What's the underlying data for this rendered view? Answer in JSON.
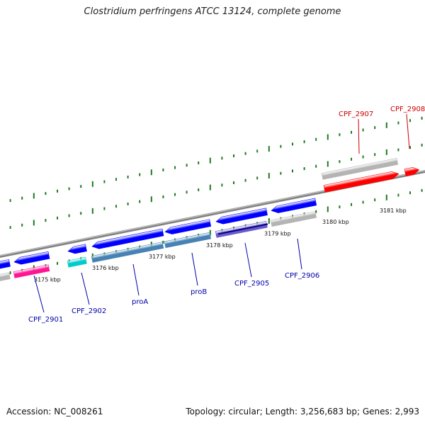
{
  "title": "Clostridium perfringens ATCC 13124, complete genome",
  "footer": {
    "accession": "Accession: NC_008261",
    "summary": "Topology: circular; Length: 3,256,683 bp; Genes: 2,993"
  },
  "colors": {
    "backbone": "#808080",
    "tick": "#1f7a1f",
    "forward_label": "#cc0000",
    "reverse_label": "#0000aa",
    "gene_red": "#ff0000",
    "gene_blue": "#0000ff",
    "gene_magenta": "#ff1493",
    "gene_cyan": "#00cccc",
    "gene_steel": "#4682b4",
    "gene_slate": "#6a5acd",
    "gene_grey": "#b4b4b4"
  },
  "scale_labels": [
    "3175 kbp",
    "3176 kbp",
    "3177 kbp",
    "3178 kbp",
    "3179 kbp",
    "3180 kbp",
    "3181 kbp"
  ],
  "genes": [
    {
      "label": "CPF_2901",
      "strand": "reverse",
      "lane_colors": [
        "gene_blue",
        "gene_magenta"
      ]
    },
    {
      "label": "CPF_2902",
      "strand": "reverse",
      "lane_colors": [
        "gene_blue",
        "gene_cyan"
      ]
    },
    {
      "label": "proA",
      "strand": "reverse",
      "lane_colors": [
        "gene_blue",
        "gene_steel"
      ]
    },
    {
      "label": "proB",
      "strand": "reverse",
      "lane_colors": [
        "gene_blue",
        "gene_steel"
      ]
    },
    {
      "label": "CPF_2905",
      "strand": "reverse",
      "lane_colors": [
        "gene_blue",
        "gene_slate"
      ]
    },
    {
      "label": "CPF_2906",
      "strand": "reverse",
      "lane_colors": [
        "gene_blue",
        "gene_grey"
      ]
    },
    {
      "label": "CPF_2907",
      "strand": "forward",
      "lane_colors": [
        "gene_grey",
        "gene_red"
      ]
    },
    {
      "label": "CPF_2908",
      "strand": "forward",
      "lane_colors": [
        "gene_red"
      ]
    }
  ]
}
